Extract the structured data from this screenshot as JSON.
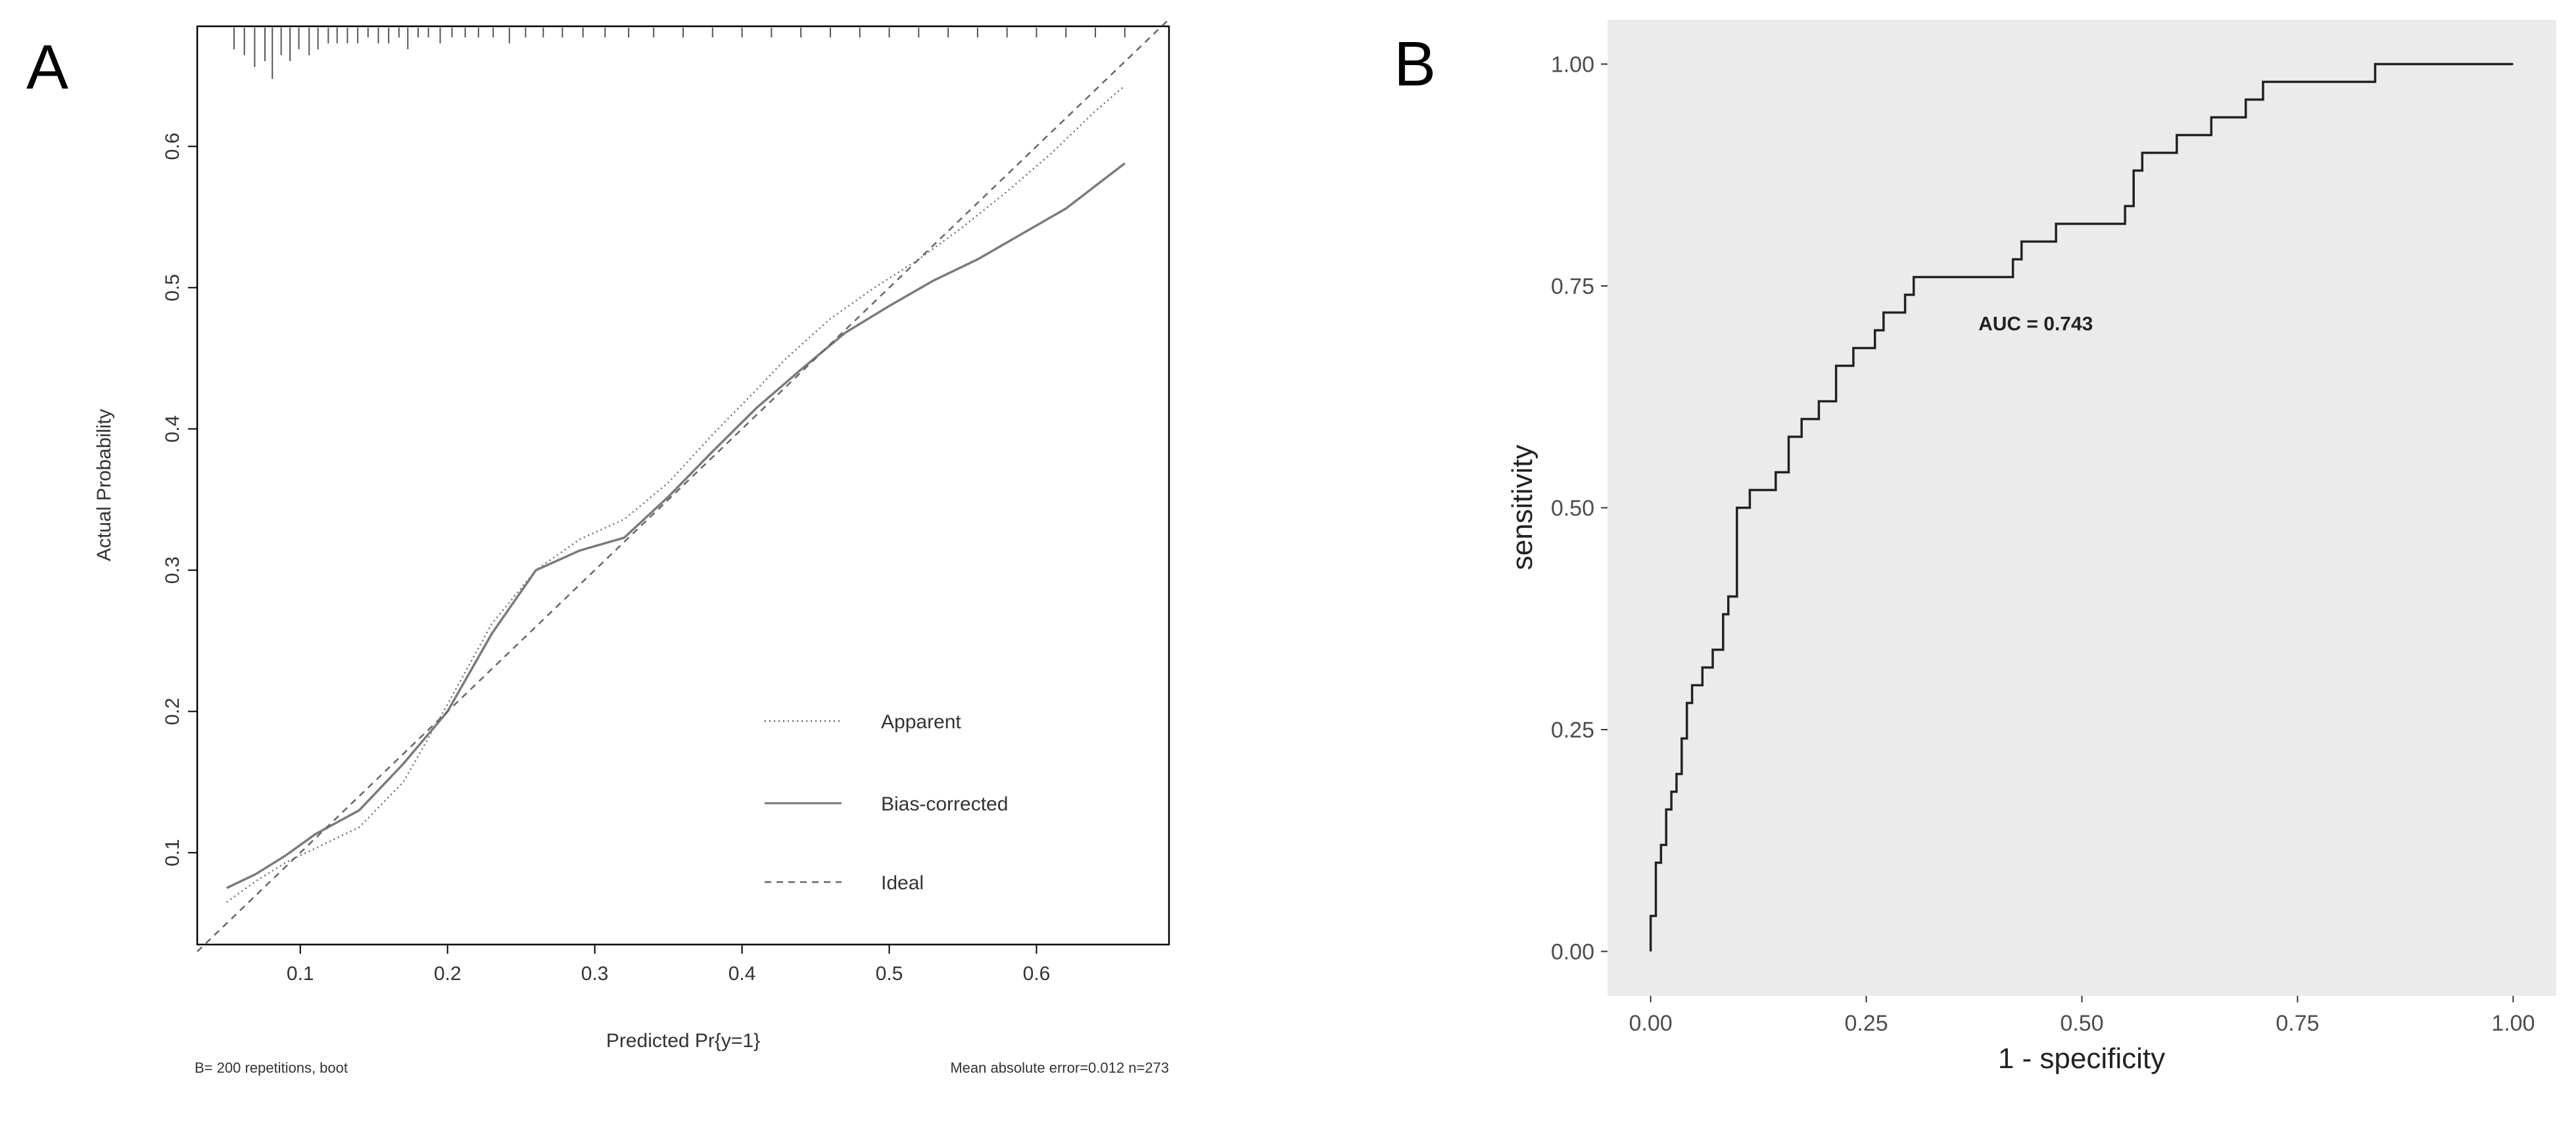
{
  "panels": {
    "a_letter": "A",
    "b_letter": "B"
  },
  "chart_data": [
    {
      "id": "A",
      "type": "line",
      "title": "",
      "xlabel": "Predicted Pr{y=1}",
      "ylabel": "Actual Probability",
      "xlim": [
        0.03,
        0.69
      ],
      "ylim": [
        0.035,
        0.685
      ],
      "xticks": [
        0.1,
        0.2,
        0.3,
        0.4,
        0.5,
        0.6
      ],
      "xtick_labels": [
        "0.1",
        "0.2",
        "0.3",
        "0.4",
        "0.5",
        "0.6"
      ],
      "yticks": [
        0.1,
        0.2,
        0.3,
        0.4,
        0.5,
        0.6
      ],
      "ytick_labels": [
        "0.1",
        "0.2",
        "0.3",
        "0.4",
        "0.5",
        "0.6"
      ],
      "grid": false,
      "legend": {
        "position": "bottom-right",
        "entries": [
          {
            "label": "Apparent",
            "style": "dotted"
          },
          {
            "label": "Bias-corrected",
            "style": "solid"
          },
          {
            "label": "Ideal",
            "style": "dashed"
          }
        ]
      },
      "series": [
        {
          "name": "Apparent",
          "style": "dotted",
          "x": [
            0.05,
            0.07,
            0.09,
            0.11,
            0.14,
            0.17,
            0.2,
            0.23,
            0.26,
            0.29,
            0.32,
            0.35,
            0.38,
            0.41,
            0.43,
            0.46,
            0.49,
            0.52,
            0.55,
            0.58,
            0.61,
            0.64,
            0.66
          ],
          "y": [
            0.065,
            0.08,
            0.093,
            0.103,
            0.118,
            0.15,
            0.205,
            0.262,
            0.3,
            0.322,
            0.336,
            0.362,
            0.396,
            0.428,
            0.45,
            0.478,
            0.5,
            0.52,
            0.543,
            0.568,
            0.595,
            0.625,
            0.643
          ]
        },
        {
          "name": "Bias-corrected",
          "style": "solid",
          "x": [
            0.05,
            0.07,
            0.09,
            0.11,
            0.14,
            0.17,
            0.2,
            0.23,
            0.26,
            0.29,
            0.32,
            0.35,
            0.38,
            0.41,
            0.44,
            0.47,
            0.5,
            0.53,
            0.56,
            0.59,
            0.62,
            0.64,
            0.66
          ],
          "y": [
            0.075,
            0.085,
            0.098,
            0.113,
            0.13,
            0.163,
            0.2,
            0.255,
            0.3,
            0.314,
            0.323,
            0.352,
            0.384,
            0.415,
            0.442,
            0.468,
            0.487,
            0.505,
            0.52,
            0.538,
            0.556,
            0.572,
            0.588
          ]
        },
        {
          "name": "Ideal",
          "style": "dashed",
          "x": [
            0.03,
            0.69
          ],
          "y": [
            0.03,
            0.69
          ]
        }
      ],
      "rug": {
        "position": "top",
        "x": [
          0.055,
          0.062,
          0.069,
          0.076,
          0.081,
          0.087,
          0.093,
          0.099,
          0.106,
          0.112,
          0.119,
          0.125,
          0.132,
          0.139,
          0.146,
          0.153,
          0.16,
          0.167,
          0.173,
          0.18,
          0.187,
          0.195,
          0.203,
          0.212,
          0.221,
          0.231,
          0.242,
          0.253,
          0.265,
          0.278,
          0.292,
          0.307,
          0.323,
          0.34,
          0.36,
          0.38,
          0.4,
          0.42,
          0.44,
          0.46,
          0.48,
          0.5,
          0.52,
          0.54,
          0.56,
          0.58,
          0.6,
          0.62,
          0.64,
          0.66
        ],
        "counts": [
          3,
          4,
          6,
          5,
          8,
          4,
          5,
          3,
          4,
          3,
          2,
          2,
          2,
          2,
          1,
          2,
          2,
          1,
          3,
          1,
          1,
          2,
          1,
          1,
          1,
          1,
          2,
          1,
          1,
          1,
          1,
          1,
          1,
          1,
          1,
          1,
          1,
          1,
          1,
          1,
          1,
          1,
          1,
          1,
          1,
          1,
          1,
          1,
          1,
          1
        ]
      },
      "footnote_left": "B= 200 repetitions, boot",
      "footnote_right": "Mean absolute error=0.012 n=273"
    },
    {
      "id": "B",
      "type": "line",
      "title": "",
      "xlabel": "1 - specificity",
      "ylabel": "sensitivity",
      "xlim": [
        -0.05,
        1.05
      ],
      "ylim": [
        -0.05,
        1.05
      ],
      "xticks": [
        0,
        0.25,
        0.5,
        0.75,
        1.0
      ],
      "xtick_labels": [
        "0.00",
        "0.25",
        "0.50",
        "0.75",
        "1.00"
      ],
      "yticks": [
        0,
        0.25,
        0.5,
        0.75,
        1.0
      ],
      "ytick_labels": [
        "0.00",
        "0.25",
        "0.50",
        "0.75",
        "1.00"
      ],
      "grid": false,
      "background": "#ebebeb",
      "annotation": {
        "text": "AUC = 0.743",
        "x": 0.38,
        "y": 0.7
      },
      "series": [
        {
          "name": "ROC",
          "style": "solid",
          "x": [
            0,
            0,
            0.006,
            0.006,
            0.012,
            0.012,
            0.018,
            0.018,
            0.024,
            0.024,
            0.03,
            0.03,
            0.036,
            0.036,
            0.042,
            0.042,
            0.048,
            0.048,
            0.06,
            0.06,
            0.072,
            0.072,
            0.084,
            0.084,
            0.09,
            0.09,
            0.1,
            0.1,
            0.115,
            0.115,
            0.145,
            0.145,
            0.16,
            0.16,
            0.175,
            0.175,
            0.195,
            0.195,
            0.215,
            0.215,
            0.235,
            0.235,
            0.26,
            0.26,
            0.27,
            0.27,
            0.285,
            0.285,
            0.295,
            0.295,
            0.305,
            0.305,
            0.42,
            0.42,
            0.43,
            0.43,
            0.47,
            0.47,
            0.55,
            0.55,
            0.56,
            0.56,
            0.57,
            0.57,
            0.61,
            0.61,
            0.65,
            0.65,
            0.67,
            0.67,
            0.69,
            0.69,
            0.71,
            0.71,
            0.84,
            0.84,
            0.89,
            0.89,
            0.92,
            0.92,
            0.95,
            0.95,
            1.0
          ],
          "y": [
            0,
            0.04,
            0.04,
            0.1,
            0.1,
            0.12,
            0.12,
            0.16,
            0.16,
            0.18,
            0.18,
            0.2,
            0.2,
            0.24,
            0.24,
            0.28,
            0.28,
            0.3,
            0.3,
            0.32,
            0.32,
            0.34,
            0.34,
            0.38,
            0.38,
            0.4,
            0.4,
            0.5,
            0.5,
            0.52,
            0.52,
            0.54,
            0.54,
            0.58,
            0.58,
            0.6,
            0.6,
            0.62,
            0.62,
            0.66,
            0.66,
            0.68,
            0.68,
            0.7,
            0.7,
            0.72,
            0.72,
            0.72,
            0.72,
            0.74,
            0.74,
            0.76,
            0.76,
            0.78,
            0.78,
            0.8,
            0.8,
            0.82,
            0.82,
            0.84,
            0.84,
            0.88,
            0.88,
            0.9,
            0.9,
            0.92,
            0.92,
            0.94,
            0.94,
            0.94,
            0.94,
            0.96,
            0.96,
            0.98,
            0.98,
            1.0,
            1.0,
            1.0,
            1.0,
            1.0,
            1.0,
            1.0,
            1.0
          ]
        }
      ]
    }
  ]
}
